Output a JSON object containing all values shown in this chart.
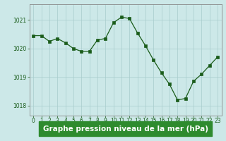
{
  "x": [
    0,
    1,
    2,
    3,
    4,
    5,
    6,
    7,
    8,
    9,
    10,
    11,
    12,
    13,
    14,
    15,
    16,
    17,
    18,
    19,
    20,
    21,
    22,
    23
  ],
  "y": [
    1020.45,
    1020.45,
    1020.25,
    1020.35,
    1020.2,
    1020.0,
    1019.9,
    1019.9,
    1020.3,
    1020.35,
    1020.9,
    1021.1,
    1021.05,
    1020.55,
    1020.1,
    1019.6,
    1019.15,
    1018.75,
    1018.2,
    1018.25,
    1018.85,
    1019.1,
    1019.4,
    1019.7
  ],
  "ylim": [
    1017.65,
    1021.55
  ],
  "yticks": [
    1018,
    1019,
    1020,
    1021
  ],
  "xticks": [
    0,
    1,
    2,
    3,
    4,
    5,
    6,
    7,
    8,
    9,
    10,
    11,
    12,
    13,
    14,
    15,
    16,
    17,
    18,
    19,
    20,
    21,
    22,
    23
  ],
  "line_color": "#1a5c1a",
  "marker_color": "#1a5c1a",
  "bg_color": "#cce8e8",
  "grid_color": "#a8cccc",
  "xlabel": "Graphe pression niveau de la mer (hPa)",
  "xlabel_color": "#1a5c1a",
  "xlabel_bg": "#2e8b2e",
  "tick_color": "#1a5c1a",
  "spine_color": "#888888",
  "tick_fontsize": 5.5,
  "xlabel_fontsize": 7.5
}
